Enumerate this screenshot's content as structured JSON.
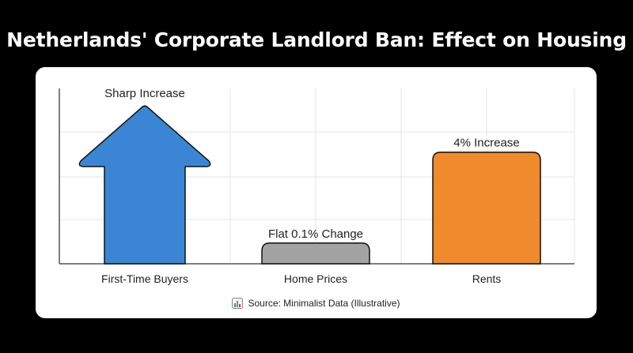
{
  "title": "Netherlands' Corporate Landlord Ban: Effect on Housing",
  "source_text": "Source: Minimalist Data (Illustrative)",
  "source_icon": "bar-chart-icon",
  "colors": {
    "background": "#000000",
    "card": "#ffffff",
    "grid": "#e4e4e4",
    "axis": "#555555",
    "first_time_buyers": "#3a86d4",
    "home_prices": "#a3a3a3",
    "rents": "#f08a2c"
  },
  "chart_data": {
    "type": "bar",
    "categories": [
      "First-Time Buyers",
      "Home Prices",
      "Rents"
    ],
    "values": [
      100,
      13,
      70
    ],
    "ylim": [
      0,
      110
    ],
    "grid": true,
    "bar_shapes": [
      "arrow-up",
      "rounded-bar",
      "rounded-bar"
    ],
    "data_labels": [
      "Sharp Increase",
      "Flat 0.1% Change",
      "4% Increase"
    ],
    "xlabel": "",
    "ylabel": ""
  }
}
